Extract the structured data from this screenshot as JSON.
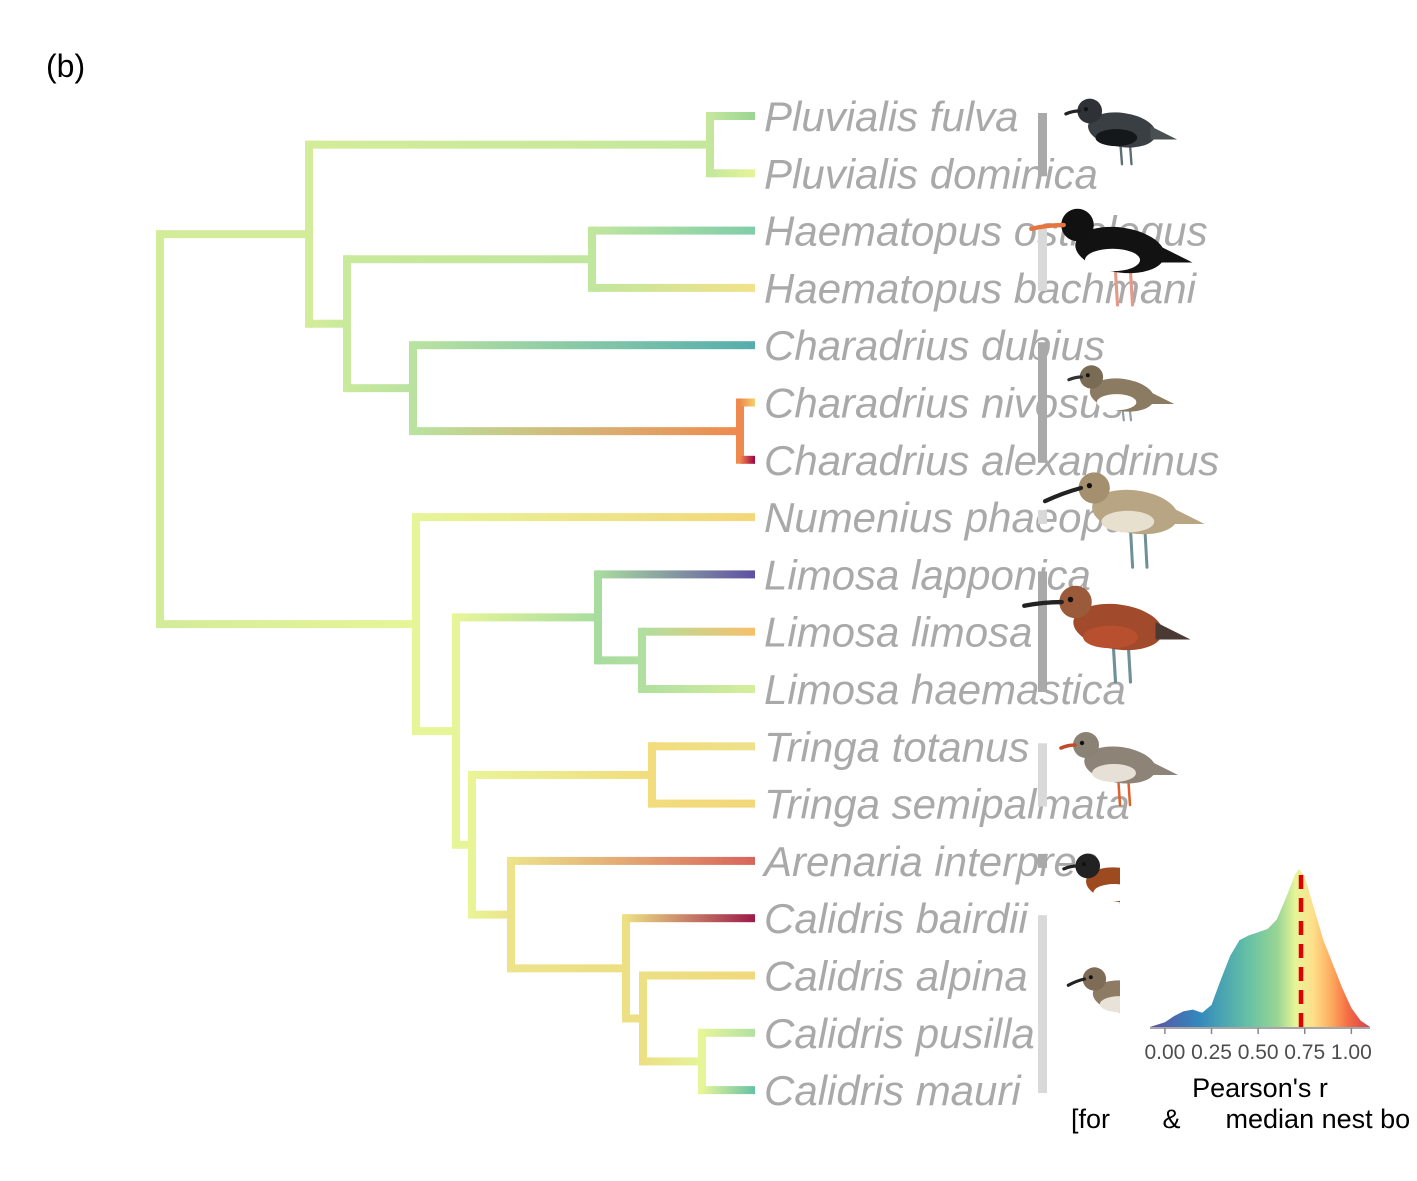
{
  "panel_label": "(b)",
  "tree": {
    "tips": [
      {
        "name": "Pluvialis fulva",
        "color": "#99d594"
      },
      {
        "name": "Pluvialis dominica",
        "color": "#e6f598"
      },
      {
        "name": "Haematopus ostralegus",
        "color": "#7fcdaa"
      },
      {
        "name": "Haematopus bachmani",
        "color": "#f3e28a"
      },
      {
        "name": "Charadrius dubius",
        "color": "#54aead"
      },
      {
        "name": "Charadrius nivosus",
        "color": "#f4d06a"
      },
      {
        "name": "Charadrius alexandrinus",
        "color": "#9e0142"
      },
      {
        "name": "Numenius phaeopus",
        "color": "#f3d77a"
      },
      {
        "name": "Limosa lapponica",
        "color": "#5e4fa2"
      },
      {
        "name": "Limosa limosa",
        "color": "#f6c06a"
      },
      {
        "name": "Limosa haemastica",
        "color": "#d6ee9b"
      },
      {
        "name": "Tringa totanus",
        "color": "#ede28a"
      },
      {
        "name": "Tringa semipalmata",
        "color": "#f3d77a"
      },
      {
        "name": "Arenaria interpres",
        "color": "#d8645a"
      },
      {
        "name": "Calidris bairdii",
        "color": "#9e1a4a"
      },
      {
        "name": "Calidris alpina",
        "color": "#f0d97c"
      },
      {
        "name": "Calidris pusilla",
        "color": "#b3e0a2"
      },
      {
        "name": "Calidris mauri",
        "color": "#66c2a5"
      }
    ],
    "nodes": [
      {
        "id": "root",
        "color": "#d3ec9a",
        "children": [
          "n_upper",
          "n_lower"
        ]
      },
      {
        "id": "n_upper",
        "color": "#d3ec9a",
        "children": [
          "n_pluv",
          "n_hc"
        ]
      },
      {
        "id": "n_pluv",
        "color": "#c4e79c",
        "children": [
          0,
          1
        ]
      },
      {
        "id": "n_hc",
        "color": "#c9e99c",
        "children": [
          "n_haem",
          "n_char"
        ]
      },
      {
        "id": "n_haem",
        "color": "#c1e69e",
        "children": [
          2,
          3
        ]
      },
      {
        "id": "n_char",
        "color": "#b9e2a0",
        "children": [
          4,
          "n_char2"
        ]
      },
      {
        "id": "n_char2",
        "color": "#ef8a4e",
        "children": [
          5,
          6
        ]
      },
      {
        "id": "n_lower",
        "color": "#e6f598",
        "children": [
          7,
          "n_ltac"
        ]
      },
      {
        "id": "n_ltac",
        "color": "#e6f598",
        "children": [
          "n_limosa",
          "n_tac"
        ]
      },
      {
        "id": "n_limosa",
        "color": "#a8dc9f",
        "children": [
          8,
          "n_limosa2"
        ]
      },
      {
        "id": "n_limosa2",
        "color": "#b0df9f",
        "children": [
          9,
          10
        ]
      },
      {
        "id": "n_tac",
        "color": "#e8f496",
        "children": [
          "n_tringa",
          "n_ac"
        ]
      },
      {
        "id": "n_tringa",
        "color": "#f2dc7c",
        "children": [
          11,
          12
        ]
      },
      {
        "id": "n_ac",
        "color": "#ece38a",
        "children": [
          13,
          "n_cal"
        ]
      },
      {
        "id": "n_cal",
        "color": "#ecdf84",
        "children": [
          14,
          "n_cal2"
        ]
      },
      {
        "id": "n_cal2",
        "color": "#ecdf84",
        "children": [
          15,
          "n_cal3"
        ]
      },
      {
        "id": "n_cal3",
        "color": "#e6f598",
        "children": [
          16,
          17
        ]
      }
    ]
  },
  "genus_bars": [
    {
      "genus": "Pluvialis",
      "from": 0,
      "to": 1,
      "color": "#a9a9a9"
    },
    {
      "genus": "Haematopus",
      "from": 2,
      "to": 3,
      "color": "#d9d9d9"
    },
    {
      "genus": "Charadrius",
      "from": 4,
      "to": 6,
      "color": "#a9a9a9"
    },
    {
      "genus": "Numenius",
      "from": 7,
      "to": 7,
      "color": "#d9d9d9"
    },
    {
      "genus": "Limosa",
      "from": 8,
      "to": 10,
      "color": "#a9a9a9"
    },
    {
      "genus": "Tringa",
      "from": 11,
      "to": 12,
      "color": "#d9d9d9"
    },
    {
      "genus": "Arenaria",
      "from": 13,
      "to": 13,
      "color": "#a9a9a9"
    },
    {
      "genus": "Calidris",
      "from": 14,
      "to": 17,
      "color": "#d9d9d9"
    }
  ],
  "chart_data": {
    "type": "area",
    "description_of_mark": "density of Pearson's r filled with spectral gradient, dashed median line",
    "x_ticks": [
      0.0,
      0.25,
      0.5,
      0.75,
      1.0
    ],
    "x_tick_labels": [
      "0.00",
      "0.25",
      "0.50",
      "0.75",
      "1.00"
    ],
    "xlim": [
      -0.08,
      1.1
    ],
    "x": [
      -0.08,
      0.0,
      0.05,
      0.1,
      0.15,
      0.2,
      0.25,
      0.3,
      0.35,
      0.4,
      0.45,
      0.5,
      0.55,
      0.6,
      0.65,
      0.7,
      0.72,
      0.75,
      0.8,
      0.85,
      0.9,
      0.95,
      1.0,
      1.05,
      1.1
    ],
    "density": [
      0.0,
      0.03,
      0.07,
      0.1,
      0.11,
      0.09,
      0.14,
      0.3,
      0.45,
      0.55,
      0.58,
      0.6,
      0.62,
      0.68,
      0.82,
      0.97,
      1.0,
      0.95,
      0.75,
      0.55,
      0.4,
      0.25,
      0.12,
      0.04,
      0.0
    ],
    "median": 0.73,
    "median_color": "#e00000",
    "xlabel_line1": "Pearson's r",
    "xlabel_line2": "[for       &      median nest bo"
  }
}
